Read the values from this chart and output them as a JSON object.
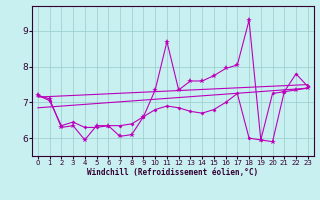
{
  "title": "",
  "xlabel": "Windchill (Refroidissement éolien,°C)",
  "bg_color": "#c8f0f0",
  "line_color": "#bb00bb",
  "grid_color": "#99cccc",
  "xlim": [
    -0.5,
    23.5
  ],
  "ylim": [
    5.5,
    9.7
  ],
  "xticks": [
    0,
    1,
    2,
    3,
    4,
    5,
    6,
    7,
    8,
    9,
    10,
    11,
    12,
    13,
    14,
    15,
    16,
    17,
    18,
    19,
    20,
    21,
    22,
    23
  ],
  "yticks": [
    6,
    7,
    8,
    9
  ],
  "main_series": [
    7.2,
    7.1,
    6.3,
    6.35,
    5.95,
    6.35,
    6.35,
    6.05,
    6.1,
    6.6,
    7.35,
    8.7,
    7.35,
    7.6,
    7.6,
    7.75,
    7.95,
    8.05,
    9.3,
    5.95,
    5.9,
    7.3,
    7.35,
    7.4
  ],
  "smooth_series": [
    7.2,
    7.05,
    6.35,
    6.45,
    6.3,
    6.3,
    6.35,
    6.35,
    6.4,
    6.6,
    6.8,
    6.9,
    6.85,
    6.75,
    6.7,
    6.8,
    7.0,
    7.25,
    6.0,
    5.95,
    7.25,
    7.3,
    7.8,
    7.45
  ],
  "trend1_x": [
    0,
    23
  ],
  "trend1_y": [
    7.15,
    7.5
  ],
  "trend2_x": [
    0,
    23
  ],
  "trend2_y": [
    6.85,
    7.4
  ]
}
